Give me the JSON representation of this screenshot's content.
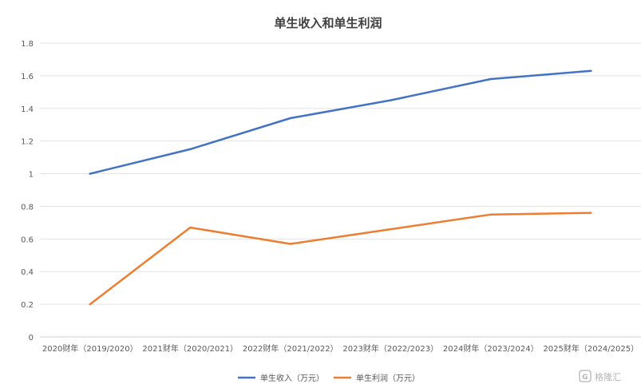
{
  "chart_data": {
    "type": "line",
    "title": "单生收入和单生利润",
    "categories": [
      "2020财年（2019/2020）",
      "2021财年（2020/2021）",
      "2022财年（2021/2022）",
      "2023财年（2022/2023）",
      "2024财年（2023/2024）",
      "2025财年（2024/2025）"
    ],
    "ylim": [
      0,
      1.8
    ],
    "yticks": [
      "0",
      "0.2",
      "0.4",
      "0.6",
      "0.8",
      "1",
      "1.2",
      "1.4",
      "1.6",
      "1.8"
    ],
    "grid": true,
    "legend_position": "bottom-center",
    "series": [
      {
        "name": "单生收入（万元）",
        "color": "#4472c4",
        "values": [
          1.0,
          1.15,
          1.34,
          1.45,
          1.58,
          1.63
        ]
      },
      {
        "name": "单生利润（万元）",
        "color": "#ed7d31",
        "values": [
          0.2,
          0.67,
          0.57,
          0.66,
          0.75,
          0.76
        ]
      }
    ]
  },
  "watermark": {
    "text": "格隆汇",
    "icon": "g-logo-icon"
  }
}
